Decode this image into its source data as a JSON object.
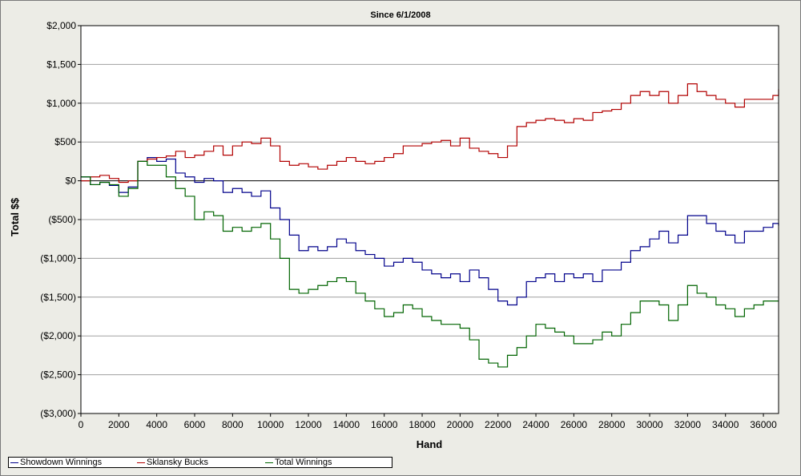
{
  "chart_data": {
    "type": "line",
    "title": "Since 6/1/2008",
    "xlabel": "Hand",
    "ylabel": "Total $$",
    "xlim": [
      0,
      36800
    ],
    "ylim": [
      -3000,
      2000
    ],
    "x_ticks": [
      0,
      2000,
      4000,
      6000,
      8000,
      10000,
      12000,
      14000,
      16000,
      18000,
      20000,
      22000,
      24000,
      26000,
      28000,
      30000,
      32000,
      34000,
      36000
    ],
    "y_ticks": [
      {
        "value": 2000,
        "label": "$2,000"
      },
      {
        "value": 1500,
        "label": "$1,500"
      },
      {
        "value": 1000,
        "label": "$1,000"
      },
      {
        "value": 500,
        "label": "$500"
      },
      {
        "value": 0,
        "label": "$0"
      },
      {
        "value": -500,
        "label": "($500)"
      },
      {
        "value": -1000,
        "label": "($1,000)"
      },
      {
        "value": -1500,
        "label": "($1,500)"
      },
      {
        "value": -2000,
        "label": "($2,000)"
      },
      {
        "value": -2500,
        "label": "($2,500)"
      },
      {
        "value": -3000,
        "label": "($3,000)"
      }
    ],
    "grid": true,
    "legend_position": "bottom-left",
    "series": [
      {
        "name": "Showdown Winnings",
        "color": "#00008b",
        "x": [
          0,
          500,
          1000,
          1500,
          2000,
          2500,
          3000,
          3500,
          4000,
          4500,
          5000,
          5500,
          6000,
          6500,
          7000,
          7500,
          8000,
          8500,
          9000,
          9500,
          10000,
          10500,
          11000,
          11500,
          12000,
          12500,
          13000,
          13500,
          14000,
          14500,
          15000,
          15500,
          16000,
          16500,
          17000,
          17500,
          18000,
          18500,
          19000,
          19500,
          20000,
          20500,
          21000,
          21500,
          22000,
          22500,
          23000,
          23500,
          24000,
          24500,
          25000,
          25500,
          26000,
          26500,
          27000,
          27500,
          28000,
          28500,
          29000,
          29500,
          30000,
          30500,
          31000,
          31500,
          32000,
          32500,
          33000,
          33500,
          34000,
          34500,
          35000,
          35500,
          36000,
          36500,
          36800
        ],
        "values": [
          50,
          -50,
          -20,
          -60,
          -150,
          -80,
          250,
          300,
          250,
          280,
          100,
          50,
          -20,
          30,
          0,
          -150,
          -100,
          -150,
          -200,
          -130,
          -350,
          -500,
          -700,
          -900,
          -850,
          -900,
          -850,
          -750,
          -800,
          -900,
          -950,
          -1000,
          -1100,
          -1050,
          -1000,
          -1050,
          -1150,
          -1200,
          -1250,
          -1200,
          -1300,
          -1150,
          -1250,
          -1400,
          -1550,
          -1600,
          -1500,
          -1300,
          -1250,
          -1200,
          -1300,
          -1200,
          -1250,
          -1200,
          -1300,
          -1150,
          -1150,
          -1050,
          -900,
          -850,
          -750,
          -650,
          -800,
          -700,
          -450,
          -450,
          -550,
          -650,
          -700,
          -800,
          -650,
          -650,
          -600,
          -550,
          -580
        ]
      },
      {
        "name": "Sklansky Bucks",
        "color": "#b20000",
        "x": [
          0,
          500,
          1000,
          1500,
          2000,
          2500,
          3000,
          3500,
          4000,
          4500,
          5000,
          5500,
          6000,
          6500,
          7000,
          7500,
          8000,
          8500,
          9000,
          9500,
          10000,
          10500,
          11000,
          11500,
          12000,
          12500,
          13000,
          13500,
          14000,
          14500,
          15000,
          15500,
          16000,
          16500,
          17000,
          17500,
          18000,
          18500,
          19000,
          19500,
          20000,
          20500,
          21000,
          21500,
          22000,
          22500,
          23000,
          23500,
          24000,
          24500,
          25000,
          25500,
          26000,
          26500,
          27000,
          27500,
          28000,
          28500,
          29000,
          29500,
          30000,
          30500,
          31000,
          31500,
          32000,
          32500,
          33000,
          33500,
          34000,
          34500,
          35000,
          35500,
          36000,
          36500,
          36800
        ],
        "values": [
          0,
          50,
          70,
          30,
          -20,
          0,
          250,
          280,
          300,
          320,
          380,
          300,
          330,
          380,
          450,
          330,
          450,
          500,
          480,
          550,
          450,
          250,
          200,
          220,
          180,
          150,
          200,
          250,
          300,
          250,
          220,
          250,
          300,
          350,
          450,
          450,
          480,
          500,
          520,
          450,
          550,
          420,
          380,
          350,
          300,
          450,
          700,
          750,
          780,
          800,
          780,
          750,
          800,
          780,
          880,
          900,
          920,
          1000,
          1100,
          1150,
          1100,
          1150,
          1000,
          1100,
          1250,
          1150,
          1100,
          1050,
          1000,
          950,
          1050,
          1050,
          1050,
          1100,
          1180
        ]
      },
      {
        "name": "Total Winnings",
        "color": "#006400",
        "x": [
          0,
          500,
          1000,
          1500,
          2000,
          2500,
          3000,
          3500,
          4000,
          4500,
          5000,
          5500,
          6000,
          6500,
          7000,
          7500,
          8000,
          8500,
          9000,
          9500,
          10000,
          10500,
          11000,
          11500,
          12000,
          12500,
          13000,
          13500,
          14000,
          14500,
          15000,
          15500,
          16000,
          16500,
          17000,
          17500,
          18000,
          18500,
          19000,
          19500,
          20000,
          20500,
          21000,
          21500,
          22000,
          22500,
          23000,
          23500,
          24000,
          24500,
          25000,
          25500,
          26000,
          26500,
          27000,
          27500,
          28000,
          28500,
          29000,
          29500,
          30000,
          30500,
          31000,
          31500,
          32000,
          32500,
          33000,
          33500,
          34000,
          34500,
          35000,
          35500,
          36000,
          36500,
          36800
        ],
        "values": [
          50,
          -50,
          -20,
          -50,
          -200,
          -100,
          250,
          200,
          200,
          50,
          -100,
          -200,
          -500,
          -400,
          -450,
          -650,
          -600,
          -650,
          -600,
          -550,
          -750,
          -1000,
          -1400,
          -1450,
          -1400,
          -1350,
          -1300,
          -1250,
          -1300,
          -1450,
          -1550,
          -1650,
          -1750,
          -1700,
          -1600,
          -1650,
          -1750,
          -1800,
          -1850,
          -1850,
          -1900,
          -2050,
          -2300,
          -2350,
          -2400,
          -2250,
          -2150,
          -2000,
          -1850,
          -1900,
          -1950,
          -2000,
          -2100,
          -2100,
          -2050,
          -1950,
          -2000,
          -1850,
          -1700,
          -1550,
          -1550,
          -1600,
          -1800,
          -1600,
          -1350,
          -1450,
          -1500,
          -1600,
          -1650,
          -1750,
          -1650,
          -1600,
          -1550,
          -1550,
          -1550
        ]
      }
    ]
  }
}
